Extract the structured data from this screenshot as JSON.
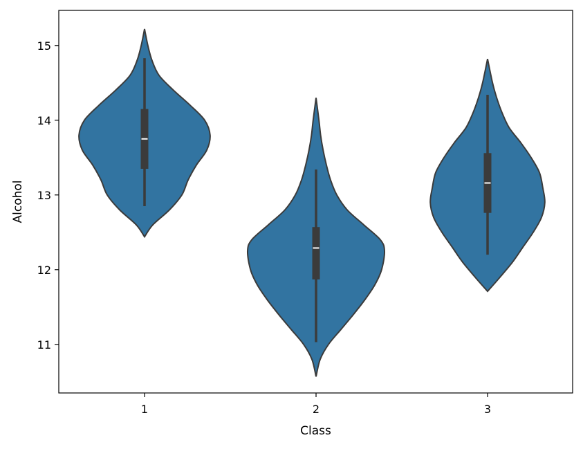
{
  "chart_data": {
    "type": "violin",
    "title": "",
    "xlabel": "Class",
    "ylabel": "Alcohol",
    "categories": [
      "1",
      "2",
      "3"
    ],
    "ylim": [
      10.35,
      15.47
    ],
    "yticks": [
      "11",
      "12",
      "13",
      "14",
      "15"
    ],
    "grid": false,
    "legend": "none",
    "violin_color": "#3274a1",
    "box_color": "#3b3b3b",
    "median_color": "#ffffff",
    "violins": [
      {
        "category": "1",
        "min": 12.85,
        "q1": 13.35,
        "median": 13.75,
        "q3": 14.15,
        "max": 14.83,
        "kde_min": 12.44,
        "kde_max": 15.22,
        "density": [
          [
            12.44,
            0.0
          ],
          [
            12.6,
            0.2
          ],
          [
            12.8,
            0.6
          ],
          [
            13.0,
            0.9
          ],
          [
            13.2,
            1.05
          ],
          [
            13.4,
            1.25
          ],
          [
            13.6,
            1.5
          ],
          [
            13.8,
            1.58
          ],
          [
            14.0,
            1.45
          ],
          [
            14.2,
            1.1
          ],
          [
            14.4,
            0.7
          ],
          [
            14.6,
            0.35
          ],
          [
            14.8,
            0.18
          ],
          [
            15.0,
            0.08
          ],
          [
            15.22,
            0.0
          ]
        ]
      },
      {
        "category": "2",
        "min": 11.03,
        "q1": 11.87,
        "median": 12.29,
        "q3": 12.57,
        "max": 13.34,
        "kde_min": 10.57,
        "kde_max": 14.3,
        "density": [
          [
            10.57,
            0.0
          ],
          [
            10.8,
            0.1
          ],
          [
            11.0,
            0.3
          ],
          [
            11.2,
            0.6
          ],
          [
            11.4,
            0.9
          ],
          [
            11.6,
            1.18
          ],
          [
            11.8,
            1.42
          ],
          [
            12.0,
            1.58
          ],
          [
            12.25,
            1.65
          ],
          [
            12.4,
            1.55
          ],
          [
            12.6,
            1.15
          ],
          [
            12.8,
            0.75
          ],
          [
            13.0,
            0.5
          ],
          [
            13.2,
            0.35
          ],
          [
            13.4,
            0.25
          ],
          [
            13.6,
            0.17
          ],
          [
            13.8,
            0.11
          ],
          [
            14.0,
            0.07
          ],
          [
            14.3,
            0.0
          ]
        ]
      },
      {
        "category": "3",
        "min": 12.2,
        "q1": 12.76,
        "median": 13.16,
        "q3": 13.56,
        "max": 14.34,
        "kde_min": 11.71,
        "kde_max": 14.82,
        "density": [
          [
            11.71,
            0.0
          ],
          [
            11.9,
            0.3
          ],
          [
            12.1,
            0.6
          ],
          [
            12.3,
            0.85
          ],
          [
            12.5,
            1.1
          ],
          [
            12.7,
            1.3
          ],
          [
            12.9,
            1.38
          ],
          [
            13.1,
            1.33
          ],
          [
            13.3,
            1.25
          ],
          [
            13.5,
            1.05
          ],
          [
            13.7,
            0.8
          ],
          [
            13.9,
            0.52
          ],
          [
            14.1,
            0.35
          ],
          [
            14.3,
            0.22
          ],
          [
            14.5,
            0.12
          ],
          [
            14.82,
            0.0
          ]
        ]
      }
    ]
  }
}
